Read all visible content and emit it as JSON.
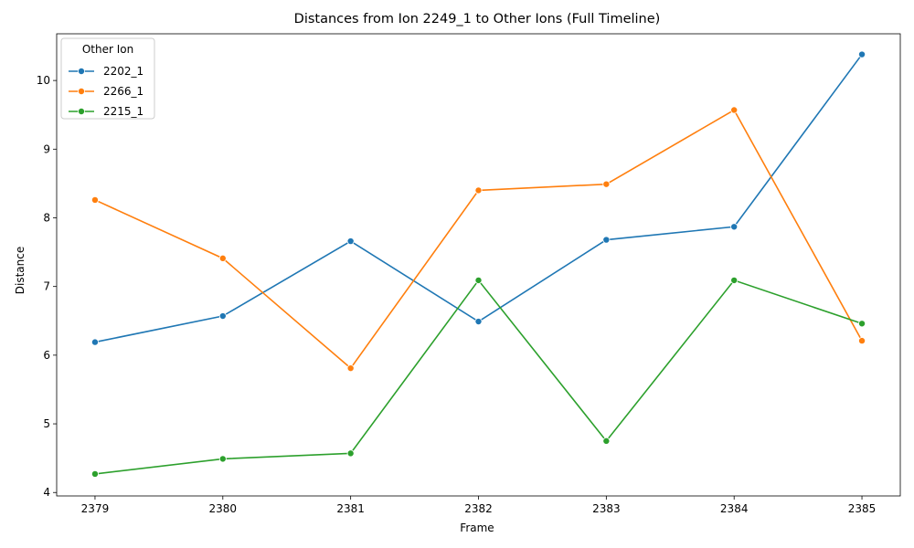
{
  "chart_data": {
    "type": "line",
    "title": "Distances from Ion 2249_1 to Other Ions (Full Timeline)",
    "xlabel": "Frame",
    "ylabel": "Distance",
    "x": [
      2379,
      2380,
      2381,
      2382,
      2383,
      2384,
      2385
    ],
    "xlim": [
      2378.7,
      2385.3
    ],
    "ylim": [
      3.95,
      10.68
    ],
    "yticks": [
      4,
      5,
      6,
      7,
      8,
      9,
      10
    ],
    "grid": false,
    "legend": {
      "title": "Other Ion",
      "placement": "upper-left"
    },
    "series": [
      {
        "name": "2202_1",
        "color": "#1f77b4",
        "values": [
          6.19,
          6.57,
          7.66,
          6.49,
          7.68,
          7.87,
          10.38
        ]
      },
      {
        "name": "2266_1",
        "color": "#ff7f0e",
        "values": [
          8.26,
          7.41,
          5.81,
          8.4,
          8.49,
          9.57,
          6.21
        ]
      },
      {
        "name": "2215_1",
        "color": "#2ca02c",
        "values": [
          4.27,
          4.49,
          4.57,
          7.09,
          4.75,
          7.09,
          6.46
        ]
      }
    ]
  }
}
